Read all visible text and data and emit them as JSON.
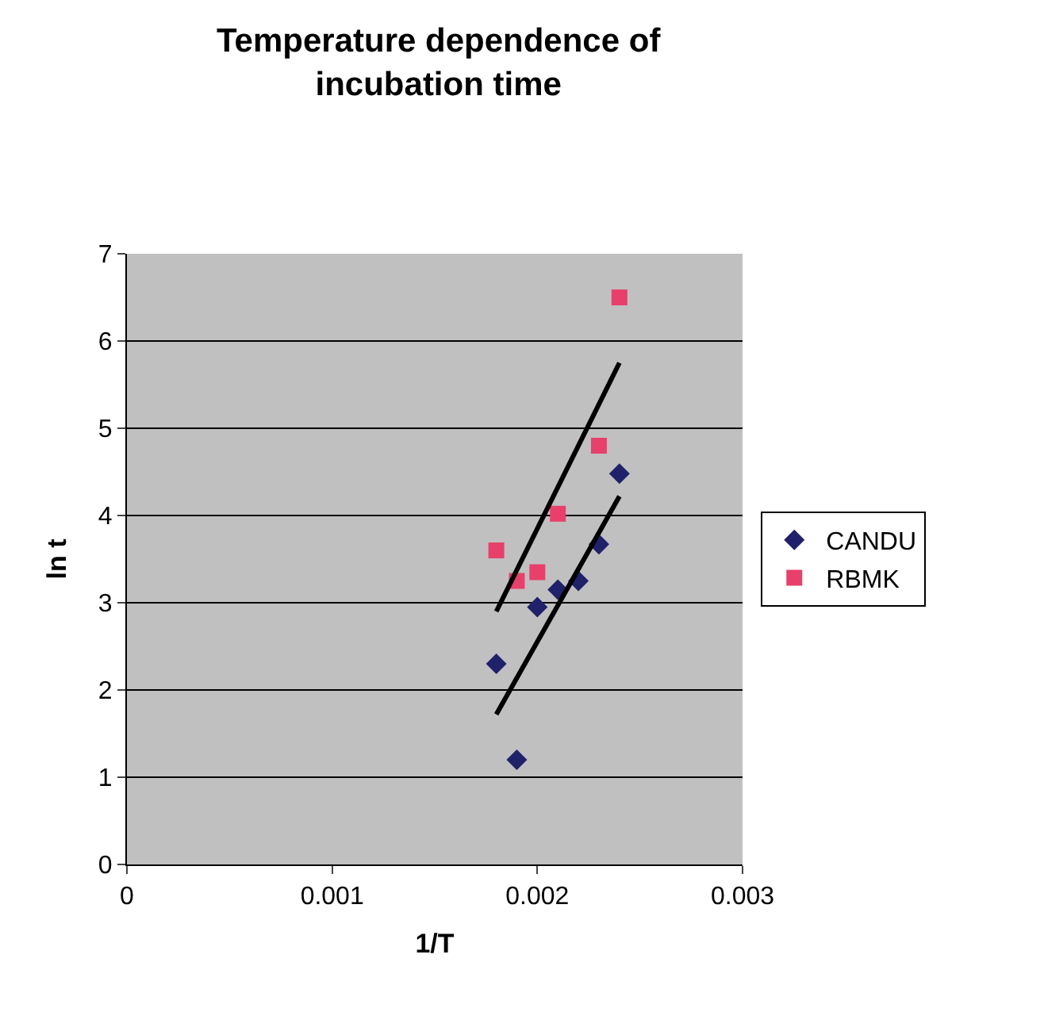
{
  "chart_data": {
    "type": "scatter",
    "title": "Temperature dependence of incubation time",
    "xlabel": "1/T",
    "ylabel": "ln t",
    "xlim": [
      0,
      0.003
    ],
    "xticks": [
      0,
      0.001,
      0.002,
      0.003
    ],
    "ylim": [
      0,
      7
    ],
    "yticks": [
      0,
      1,
      2,
      3,
      4,
      5,
      6,
      7
    ],
    "grid": "y",
    "legend": "right",
    "series": [
      {
        "name": "CANDU",
        "color": "#1f216b",
        "marker": "diamond",
        "x": [
          0.0018,
          0.0019,
          0.002,
          0.0021,
          0.0022,
          0.0023,
          0.0024
        ],
        "values": [
          2.3,
          1.2,
          2.95,
          3.15,
          3.25,
          3.67,
          4.48
        ]
      },
      {
        "name": "RBMK",
        "color": "#e8406a",
        "marker": "square",
        "x": [
          0.0018,
          0.0019,
          0.002,
          0.0021,
          0.0023,
          0.0024
        ],
        "values": [
          3.6,
          3.25,
          3.35,
          4.02,
          4.8,
          6.5
        ]
      },
      {
        "type": "line",
        "color": "#000000",
        "marker": "none",
        "x": [
          0.0018,
          0.0024
        ],
        "values": [
          2.9,
          5.75
        ]
      },
      {
        "type": "line",
        "color": "#000000",
        "marker": "none",
        "x": [
          0.0018,
          0.0024
        ],
        "values": [
          1.72,
          4.22
        ]
      }
    ]
  }
}
